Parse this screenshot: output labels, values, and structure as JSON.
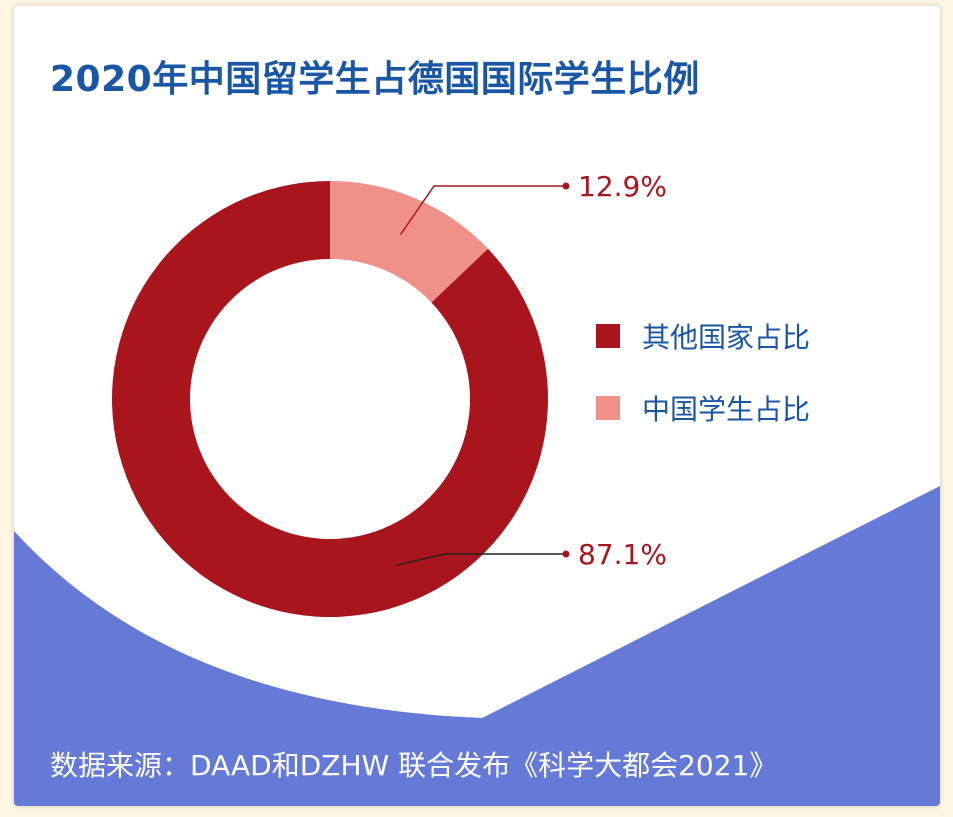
{
  "colors": {
    "other": "#a8151d",
    "china": "#f09189",
    "title": "#1a56a6",
    "wave": "#6579d6",
    "callout": "#a8151d"
  },
  "chart_data": {
    "type": "pie",
    "title": "2020年中国留学生占德国国际学生比例",
    "donut": true,
    "legend_position": "right",
    "slices": [
      {
        "label": "中国学生占比",
        "value": 12.9,
        "display": "12.9%"
      },
      {
        "label": "其他国家占比",
        "value": 87.1,
        "display": "87.1%"
      }
    ],
    "legend": [
      {
        "label": "其他国家占比",
        "color": "#a8151d"
      },
      {
        "label": "中国学生占比",
        "color": "#f09189"
      }
    ]
  },
  "source": "数据来源：DAAD和DZHW 联合发布《科学大都会2021》"
}
